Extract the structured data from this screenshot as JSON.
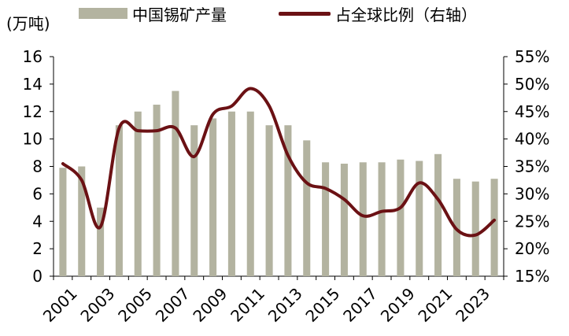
{
  "chart_data": {
    "type": "bar",
    "unit_label": "(万吨)",
    "x": [
      2001,
      2002,
      2003,
      2004,
      2005,
      2006,
      2007,
      2008,
      2009,
      2010,
      2011,
      2012,
      2013,
      2014,
      2015,
      2016,
      2017,
      2018,
      2019,
      2020,
      2021,
      2022,
      2023,
      2024
    ],
    "x_tick_labels": [
      "2001",
      "2003",
      "2005",
      "2007",
      "2009",
      "2011",
      "2013",
      "2015",
      "2017",
      "2019",
      "2021",
      "2023"
    ],
    "series": [
      {
        "name": "中国锡矿产量",
        "type": "bar",
        "axis": "left",
        "color": "#b3b3a0",
        "values": [
          7.9,
          8.0,
          5.0,
          11.0,
          12.0,
          12.5,
          13.5,
          11.0,
          11.5,
          12.0,
          12.0,
          11.0,
          11.0,
          9.9,
          8.3,
          8.2,
          8.3,
          8.3,
          8.5,
          8.4,
          8.9,
          7.1,
          6.9,
          7.1
        ]
      },
      {
        "name": "占全球比例（右轴）",
        "type": "line",
        "axis": "right",
        "color": "#6b1114",
        "values": [
          35.5,
          32.5,
          24.0,
          42.0,
          41.5,
          41.5,
          42.0,
          36.8,
          44.5,
          46.0,
          49.2,
          46.0,
          37.0,
          32.0,
          31.0,
          29.0,
          26.0,
          26.8,
          27.5,
          32.0,
          29.0,
          23.5,
          22.5,
          25.2
        ]
      }
    ],
    "y_left": {
      "ylim": [
        0,
        16
      ],
      "ticks": [
        0,
        2,
        4,
        6,
        8,
        10,
        12,
        14,
        16
      ]
    },
    "y_right": {
      "ylim": [
        15,
        55
      ],
      "ticks": [
        "15%",
        "20%",
        "25%",
        "30%",
        "35%",
        "40%",
        "45%",
        "50%",
        "55%"
      ]
    },
    "grid": false,
    "legend_position": "top"
  }
}
